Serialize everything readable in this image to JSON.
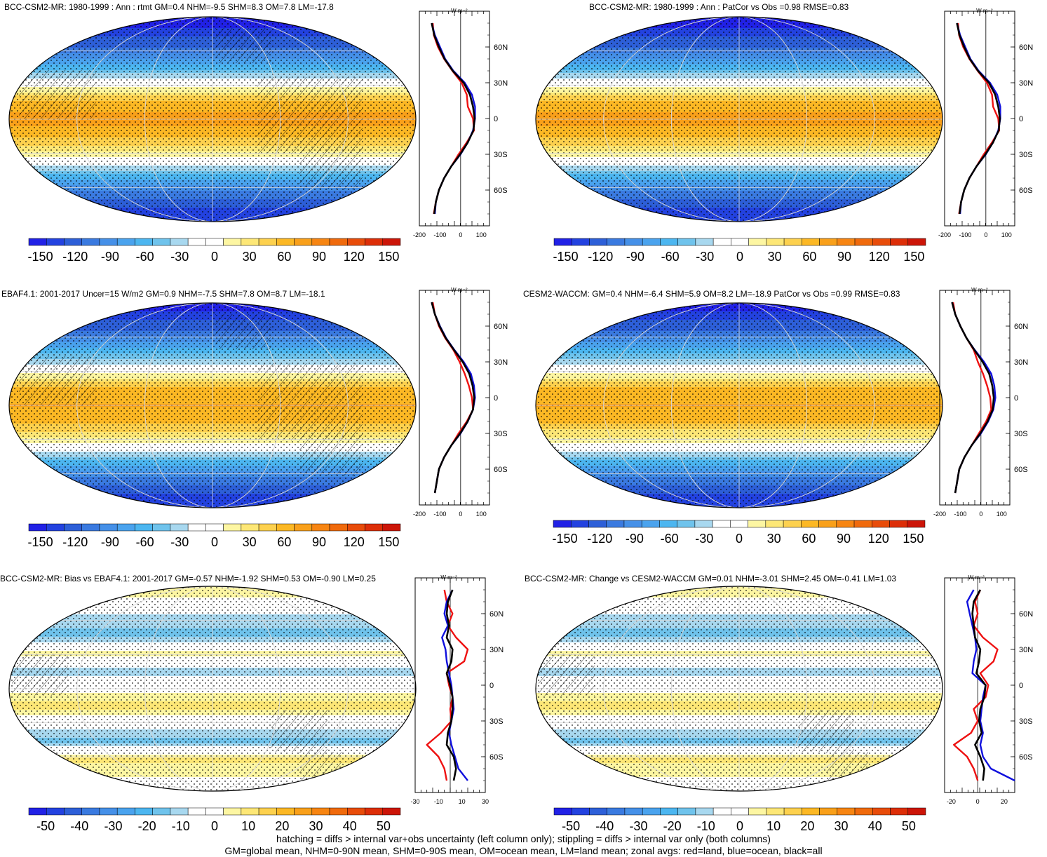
{
  "footer": {
    "line1": "hatching = diffs > internal var+obs uncertainty (left column only); stippling = diffs > internal var only (both columns)",
    "line2": "GM=global mean, NHM=0-90N mean, SHM=0-90S mean, OM=ocean mean, LM=land mean; zonal avgs: red=land, blue=ocean, black=all"
  },
  "colors": {
    "land_line": "#ee1111",
    "ocean_line": "#1010dd",
    "all_line": "#000000",
    "palette": [
      "#2121e6",
      "#2342e0",
      "#2d5fd8",
      "#3a7ae0",
      "#4590e8",
      "#4aa3ee",
      "#4cb6f0",
      "#6fc3ec",
      "#a8d8ef",
      "#ffffff",
      "#ffffff",
      "#fdf6a2",
      "#fde776",
      "#fdd14e",
      "#fcb824",
      "#f9a01a",
      "#f78512",
      "#f06a0c",
      "#e84c0a",
      "#dd2e08",
      "#cc1508"
    ]
  },
  "chart_data": [
    {
      "id": "p1",
      "type": "heatmap",
      "title": "BCC-CSM2-MR: 1980-1999 : Ann : rtmt GM=0.4 NHM=-9.5 SHM=8.3 OM=7.8 LM=-17.8",
      "colorbar": {
        "range": [
          -160,
          160
        ],
        "ticks": [
          -150,
          -120,
          -90,
          -60,
          -30,
          0,
          30,
          60,
          90,
          120,
          150
        ]
      },
      "field": {
        "lat": [
          80,
          60,
          45,
          30,
          15,
          0,
          -15,
          -30,
          -45,
          -60,
          -80
        ],
        "values": [
          -150,
          -110,
          -60,
          -5,
          60,
          75,
          55,
          20,
          -45,
          -95,
          -140
        ]
      },
      "profile": {
        "units": "W m⁻²",
        "xlim": [
          -200,
          140
        ],
        "xticks": [
          -200,
          -100,
          0,
          100
        ],
        "lat_labels": [
          "60N",
          "30N",
          "0",
          "30S",
          "60S"
        ],
        "lat_values": [
          60,
          30,
          0,
          -30,
          -60
        ],
        "lat": [
          80,
          70,
          60,
          50,
          40,
          30,
          20,
          10,
          0,
          -10,
          -20,
          -30,
          -40,
          -50,
          -60,
          -70,
          -80
        ],
        "series": [
          {
            "name": "land",
            "values": [
              -135,
              -130,
              -110,
              -80,
              -40,
              5,
              30,
              35,
              60,
              65,
              30,
              -10,
              -45,
              -80,
              -105,
              -120,
              -130
            ]
          },
          {
            "name": "ocean",
            "values": [
              -140,
              -125,
              -100,
              -75,
              -35,
              20,
              55,
              70,
              70,
              60,
              35,
              0,
              -45,
              -80,
              -105,
              -120,
              -125
            ]
          },
          {
            "name": "all",
            "values": [
              -140,
              -128,
              -105,
              -78,
              -38,
              15,
              45,
              60,
              68,
              62,
              35,
              -2,
              -45,
              -80,
              -105,
              -120,
              -128
            ]
          }
        ]
      },
      "hatch": "dense"
    },
    {
      "id": "p2",
      "type": "heatmap",
      "title": "BCC-CSM2-MR: 1980-1999 : Ann : PatCor vs Obs =0.98 RMSE=0.83",
      "colorbar": {
        "range": [
          -160,
          160
        ],
        "ticks": [
          -150,
          -120,
          -90,
          -60,
          -30,
          0,
          30,
          60,
          90,
          120,
          150
        ]
      },
      "field": {
        "lat": [
          80,
          60,
          45,
          30,
          15,
          0,
          -15,
          -30,
          -45,
          -60,
          -80
        ],
        "values": [
          -150,
          -110,
          -60,
          -5,
          60,
          75,
          55,
          20,
          -45,
          -95,
          -140
        ]
      },
      "profile": {
        "units": "W m⁻²",
        "xlim": [
          -200,
          140
        ],
        "xticks": [
          -200,
          -100,
          0,
          100
        ],
        "lat_labels": [
          "60N",
          "30N",
          "0",
          "30S",
          "60S"
        ],
        "lat_values": [
          60,
          30,
          0,
          -30,
          -60
        ],
        "lat": [
          80,
          70,
          60,
          50,
          40,
          30,
          20,
          10,
          0,
          -10,
          -20,
          -30,
          -40,
          -50,
          -60,
          -70,
          -80
        ],
        "series": [
          {
            "name": "land",
            "values": [
              -135,
              -130,
              -110,
              -80,
              -40,
              5,
              30,
              35,
              60,
              65,
              30,
              -10,
              -45,
              -80,
              -105,
              -120,
              -130
            ]
          },
          {
            "name": "ocean",
            "values": [
              -140,
              -125,
              -100,
              -75,
              -35,
              20,
              55,
              70,
              70,
              60,
              35,
              0,
              -45,
              -80,
              -105,
              -120,
              -125
            ]
          },
          {
            "name": "all",
            "values": [
              -140,
              -128,
              -105,
              -78,
              -38,
              15,
              45,
              60,
              68,
              62,
              35,
              -2,
              -45,
              -80,
              -105,
              -120,
              -128
            ]
          }
        ]
      },
      "hatch": "none"
    },
    {
      "id": "p3",
      "type": "heatmap",
      "title": "EBAF4.1: 2001-2017 Uncer=15 W/m2 GM=0.9 NHM=-7.5 SHM=7.8 OM=8.7 LM=-18.1",
      "colorbar": {
        "range": [
          -160,
          160
        ],
        "ticks": [
          -150,
          -120,
          -90,
          -60,
          -30,
          0,
          30,
          60,
          90,
          120,
          150
        ]
      },
      "field": {
        "lat": [
          80,
          60,
          45,
          30,
          15,
          0,
          -15,
          -30,
          -45,
          -60,
          -80
        ],
        "values": [
          -145,
          -105,
          -55,
          -5,
          55,
          70,
          55,
          20,
          -45,
          -95,
          -140
        ]
      },
      "profile": {
        "units": "W m⁻²",
        "xlim": [
          -200,
          140
        ],
        "xticks": [
          -200,
          -100,
          0,
          100
        ],
        "lat_labels": [
          "60N",
          "30N",
          "0",
          "30S",
          "60S"
        ],
        "lat_values": [
          60,
          30,
          0,
          -30,
          -60
        ],
        "lat": [
          80,
          70,
          60,
          50,
          40,
          30,
          20,
          10,
          0,
          -10,
          -20,
          -30,
          -40,
          -50,
          -60,
          -70,
          -80
        ],
        "series": [
          {
            "name": "land",
            "values": [
              -135,
              -125,
              -105,
              -75,
              -35,
              -5,
              20,
              40,
              55,
              60,
              30,
              -10,
              -45,
              -80,
              -105,
              -115,
              -125
            ]
          },
          {
            "name": "ocean",
            "values": [
              -140,
              -125,
              -100,
              -70,
              -30,
              15,
              50,
              65,
              70,
              60,
              35,
              0,
              -45,
              -80,
              -105,
              -115,
              -125
            ]
          },
          {
            "name": "all",
            "values": [
              -140,
              -125,
              -102,
              -72,
              -32,
              10,
              42,
              58,
              66,
              60,
              34,
              -2,
              -45,
              -80,
              -105,
              -115,
              -125
            ]
          }
        ]
      },
      "hatch": "dense"
    },
    {
      "id": "p4",
      "type": "heatmap",
      "title": "CESM2-WACCM: GM=0.4 NHM=-6.4 SHM=5.9 OM=8.2 LM=-18.9 PatCor vs Obs =0.99 RMSE=0.83",
      "colorbar": {
        "range": [
          -160,
          160
        ],
        "ticks": [
          -150,
          -120,
          -90,
          -60,
          -30,
          0,
          30,
          60,
          90,
          120,
          150
        ]
      },
      "field": {
        "lat": [
          80,
          60,
          45,
          30,
          15,
          0,
          -15,
          -30,
          -45,
          -60,
          -80
        ],
        "values": [
          -145,
          -105,
          -55,
          -5,
          55,
          70,
          55,
          15,
          -45,
          -95,
          -140
        ]
      },
      "profile": {
        "units": "W m⁻²",
        "xlim": [
          -200,
          140
        ],
        "xticks": [
          -200,
          -100,
          0,
          100
        ],
        "lat_labels": [
          "60N",
          "30N",
          "0",
          "30S",
          "60S"
        ],
        "lat_values": [
          60,
          30,
          0,
          -30,
          -60
        ],
        "lat": [
          80,
          70,
          60,
          50,
          40,
          30,
          20,
          10,
          0,
          -10,
          -20,
          -30,
          -40,
          -50,
          -60,
          -70,
          -80
        ],
        "series": [
          {
            "name": "land",
            "values": [
              -135,
              -125,
              -100,
              -70,
              -35,
              -15,
              10,
              30,
              45,
              50,
              25,
              -10,
              -45,
              -80,
              -105,
              -115,
              -125
            ]
          },
          {
            "name": "ocean",
            "values": [
              -140,
              -125,
              -100,
              -70,
              -30,
              15,
              50,
              65,
              70,
              60,
              35,
              0,
              -45,
              -80,
              -105,
              -115,
              -125
            ]
          },
          {
            "name": "all",
            "values": [
              -140,
              -125,
              -100,
              -70,
              -32,
              8,
              40,
              55,
              62,
              57,
              32,
              -3,
              -45,
              -80,
              -105,
              -115,
              -125
            ]
          }
        ]
      },
      "hatch": "none"
    },
    {
      "id": "p5",
      "type": "heatmap",
      "title": "BCC-CSM2-MR: Bias vs EBAF4.1: 2001-2017 GM=-0.57 NHM=-1.92 SHM=0.53 OM=-0.90 LM=0.25",
      "colorbar": {
        "range": [
          -55,
          55
        ],
        "ticks": [
          -50,
          -40,
          -30,
          -20,
          -10,
          0,
          10,
          20,
          30,
          40,
          50
        ]
      },
      "field": {
        "lat": [
          80,
          60,
          45,
          30,
          15,
          0,
          -15,
          -30,
          -45,
          -60,
          -80
        ],
        "values": [
          5,
          -10,
          -15,
          5,
          -10,
          0,
          10,
          -5,
          -15,
          10,
          0
        ]
      },
      "profile": {
        "units": "W m⁻²",
        "xlim": [
          -30,
          30
        ],
        "xticks": [
          -30,
          -10,
          10,
          30
        ],
        "lat_labels": [
          "60N",
          "30N",
          "0",
          "30S",
          "60S"
        ],
        "lat_values": [
          60,
          30,
          0,
          -30,
          -60
        ],
        "lat": [
          80,
          70,
          60,
          50,
          40,
          30,
          20,
          10,
          0,
          -10,
          -20,
          -30,
          -40,
          -50,
          -60,
          -70,
          -80
        ],
        "series": [
          {
            "name": "land",
            "values": [
              -5,
              -3,
              2,
              -2,
              5,
              15,
              12,
              -3,
              -1,
              2,
              0,
              1,
              -8,
              -20,
              -10,
              -5,
              -3
            ]
          },
          {
            "name": "ocean",
            "values": [
              2,
              -3,
              -5,
              -2,
              -7,
              -4,
              -3,
              -1,
              1,
              2,
              3,
              1,
              -1,
              1,
              4,
              7,
              15
            ]
          },
          {
            "name": "all",
            "values": [
              2,
              -2,
              -3,
              -1,
              -3,
              2,
              1,
              -3,
              0,
              2,
              2,
              1,
              -2,
              -3,
              3,
              5,
              3
            ]
          }
        ]
      },
      "hatch": "sparse"
    },
    {
      "id": "p6",
      "type": "heatmap",
      "title": "BCC-CSM2-MR: Change vs CESM2-WACCM GM=0.01 NHM=-3.01 SHM=2.45 OM=-0.41 LM=1.03",
      "colorbar": {
        "range": [
          -55,
          55
        ],
        "ticks": [
          -50,
          -40,
          -30,
          -20,
          -10,
          0,
          10,
          20,
          30,
          40,
          50
        ]
      },
      "field": {
        "lat": [
          80,
          60,
          45,
          30,
          15,
          0,
          -15,
          -30,
          -45,
          -60,
          -80
        ],
        "values": [
          5,
          -10,
          -15,
          5,
          -10,
          0,
          10,
          -5,
          -15,
          10,
          0
        ]
      },
      "profile": {
        "units": "W m⁻²",
        "xlim": [
          -25,
          28
        ],
        "xticks": [
          -20,
          0,
          20
        ],
        "lat_labels": [
          "60N",
          "30N",
          "0",
          "30S",
          "60S"
        ],
        "lat_values": [
          60,
          30,
          0,
          -30,
          -60
        ],
        "lat": [
          80,
          70,
          60,
          50,
          40,
          30,
          20,
          10,
          0,
          -10,
          -20,
          -30,
          -40,
          -50,
          -60,
          -70,
          -80
        ],
        "series": [
          {
            "name": "land",
            "values": [
              2,
              -2,
              0,
              -3,
              4,
              15,
              12,
              2,
              8,
              6,
              -3,
              0,
              -5,
              -18,
              -8,
              -3,
              0
            ]
          },
          {
            "name": "ocean",
            "values": [
              -3,
              -8,
              -6,
              -4,
              -2,
              -1,
              -3,
              -4,
              6,
              4,
              3,
              2,
              4,
              2,
              4,
              10,
              28
            ]
          },
          {
            "name": "all",
            "values": [
              2,
              -3,
              -4,
              -3,
              -2,
              2,
              1,
              -1,
              6,
              5,
              2,
              1,
              3,
              -2,
              2,
              5,
              4
            ]
          }
        ]
      },
      "hatch": "sparse"
    }
  ]
}
